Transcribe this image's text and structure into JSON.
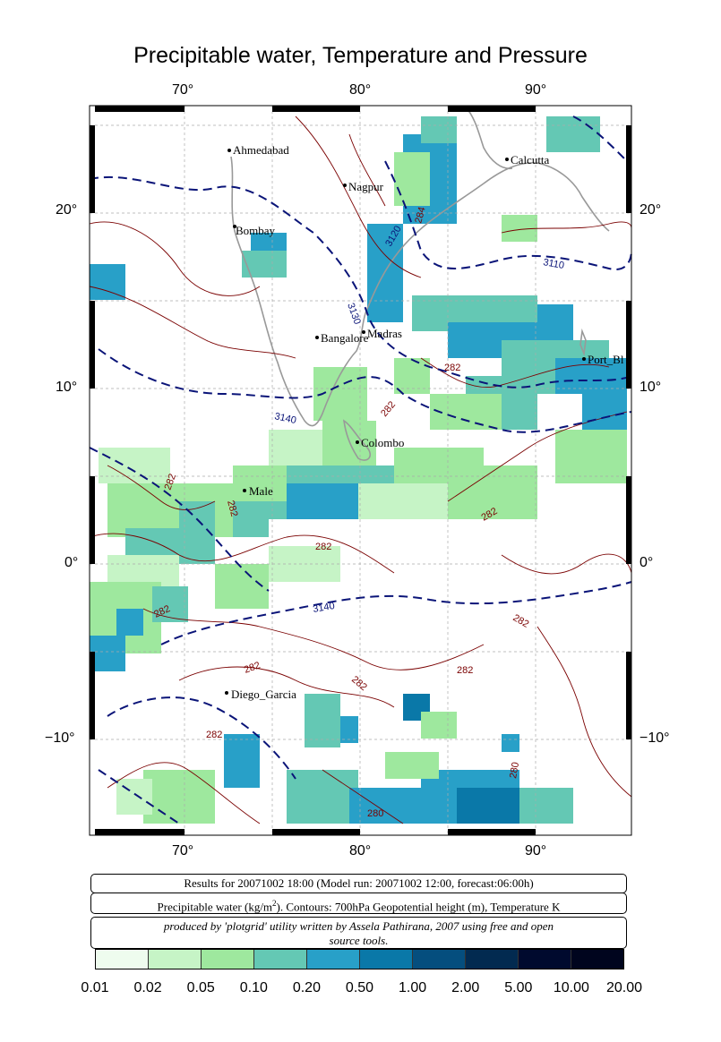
{
  "title": "Precipitable water, Temperature and Pressure",
  "lon_labels": [
    "70°",
    "80°",
    "90°"
  ],
  "lat_labels": [
    "20°",
    "10°",
    "0°",
    "−10°"
  ],
  "cities": [
    {
      "name": "Ahmedabad"
    },
    {
      "name": "Nagpur"
    },
    {
      "name": "Calcutta"
    },
    {
      "name": "Bombay"
    },
    {
      "name": "Bangalore"
    },
    {
      "name": "Madras"
    },
    {
      "name": "Port_Bl"
    },
    {
      "name": "Colombo"
    },
    {
      "name": "Male"
    },
    {
      "name": "Diego_Garcia"
    }
  ],
  "contour_labels": {
    "geopotential": [
      "3110",
      "3120",
      "3130",
      "3140",
      "3140"
    ],
    "temperature": [
      "284",
      "282",
      "282",
      "282",
      "282",
      "282",
      "282",
      "282",
      "282",
      "282",
      "282",
      "282",
      "280",
      "280",
      "282"
    ]
  },
  "info": {
    "results": "Results for 20071002 18:00 (Model run: 20071002 12:00, forecast:06:00h)",
    "legend_prefix": "Precipitable water (kg/m",
    "legend_sup": "2",
    "legend_suffix": ").  Contours: 700hPa Geopotential height (m), Temperature K",
    "credit_line1": "produced by 'plotgrid' utility written by Assela Pathirana, 2007 using free and open",
    "credit_line2": "source tools."
  },
  "colorbar": {
    "labels": [
      "0.01",
      "0.02",
      "0.05",
      "0.10",
      "0.20",
      "0.50",
      "1.00",
      "2.00",
      "5.00",
      "10.00",
      "20.00"
    ],
    "colors": [
      "#eefcee",
      "#c6f4c6",
      "#9ee89e",
      "#64c8b4",
      "#28a0c8",
      "#0a78a8",
      "#054e7e",
      "#022a50",
      "#000a2e",
      "#00051e"
    ]
  }
}
